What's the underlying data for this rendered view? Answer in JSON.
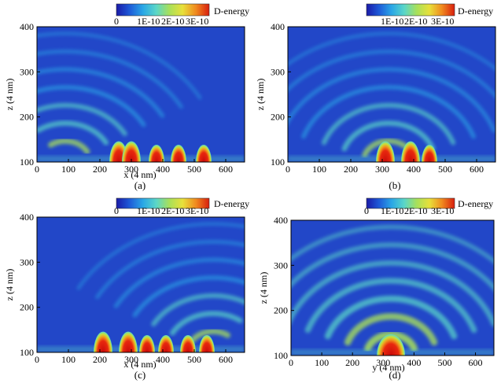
{
  "chart_data": [
    {
      "type": "heatmap",
      "panel_label": "(a)",
      "xlabel": "x (4 nm)",
      "ylabel": "z (4 nm)",
      "xlim": [
        0,
        660
      ],
      "ylim": [
        100,
        400
      ],
      "x_ticks": [
        0,
        100,
        200,
        300,
        400,
        500,
        600
      ],
      "y_ticks": [
        100,
        200,
        300,
        400
      ],
      "colorbar": {
        "title": "D-energy",
        "ticks": [
          "0",
          "1E-10",
          "2E-10",
          "3E-10"
        ],
        "range": [
          0,
          3.5e-10
        ]
      },
      "pattern": {
        "source_x": [
          260,
          300,
          380,
          450,
          530
        ],
        "wavefront_center_x": 90,
        "tilt_deg": 55,
        "description_free": true
      }
    },
    {
      "type": "heatmap",
      "panel_label": "(b)",
      "xlabel": "",
      "ylabel": "z (4 nm)",
      "xlim": [
        0,
        660
      ],
      "ylim": [
        100,
        400
      ],
      "x_ticks": [
        0,
        100,
        200,
        300,
        400,
        500,
        600
      ],
      "y_ticks": [
        100,
        200,
        300,
        400
      ],
      "colorbar": {
        "title": "D-energy",
        "ticks": [
          "1E-10",
          "2E-10",
          "3E-10"
        ],
        "range": [
          0,
          3.5e-10
        ]
      },
      "pattern": {
        "source_x": [
          310,
          390,
          450
        ],
        "wavefront_center_x": 320,
        "tilt_deg": 0
      }
    },
    {
      "type": "heatmap",
      "panel_label": "(c)",
      "xlabel": "x (4 nm)",
      "ylabel": "z (4 nm)",
      "xlim": [
        0,
        660
      ],
      "ylim": [
        100,
        400
      ],
      "x_ticks": [
        0,
        100,
        200,
        300,
        400,
        500,
        600
      ],
      "y_ticks": [
        100,
        200,
        300,
        400
      ],
      "colorbar": {
        "title": "D-energy",
        "ticks": [
          "0",
          "1E-10",
          "2E-10",
          "3E-10"
        ],
        "range": [
          0,
          3.5e-10
        ]
      },
      "pattern": {
        "source_x": [
          210,
          290,
          350,
          410,
          480,
          540
        ],
        "wavefront_center_x": 560,
        "tilt_deg": -55
      }
    },
    {
      "type": "heatmap",
      "panel_label": "(d)",
      "xlabel": "y (4 nm)",
      "ylabel": "z (4 nm)",
      "xlim": [
        0,
        660
      ],
      "ylim": [
        100,
        400
      ],
      "x_ticks": [
        0,
        100,
        200,
        300,
        400,
        500,
        600
      ],
      "y_ticks": [
        100,
        200,
        300,
        400
      ],
      "colorbar": {
        "title": "D-energy",
        "ticks": [
          "0",
          "1E-10",
          "2E-10",
          "3E-10"
        ],
        "range": [
          0,
          3.5e-10
        ]
      },
      "pattern": {
        "source_x": [
          325
        ],
        "wavefront_center_x": 325,
        "tilt_deg": 0
      }
    }
  ],
  "colors": {
    "scale": [
      "#1a1aa8",
      "#1e5bd8",
      "#2aa7e6",
      "#5ad6c8",
      "#a8e05a",
      "#e8e03a",
      "#f08a1e",
      "#d81e0e"
    ],
    "background": "#2247c8"
  }
}
